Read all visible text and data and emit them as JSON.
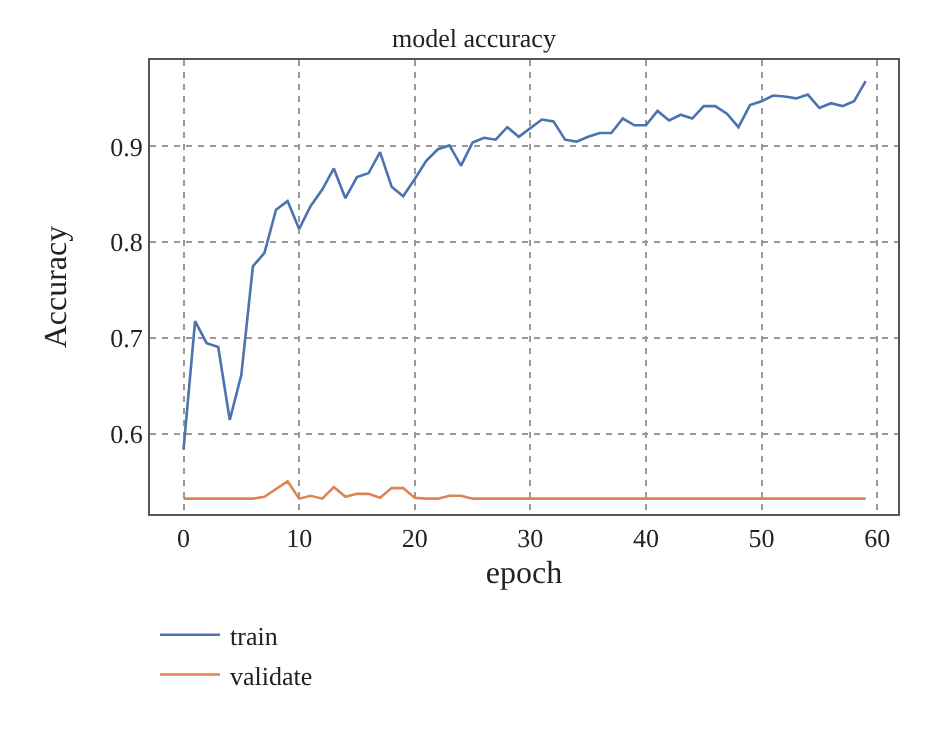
{
  "chart_data": {
    "type": "line",
    "title": "model accuracy",
    "xlabel": "epoch",
    "ylabel": "Accuracy",
    "x": [
      0,
      1,
      2,
      3,
      4,
      5,
      6,
      7,
      8,
      9,
      10,
      11,
      12,
      13,
      14,
      15,
      16,
      17,
      18,
      19,
      20,
      21,
      22,
      23,
      24,
      25,
      26,
      27,
      28,
      29,
      30,
      31,
      32,
      33,
      34,
      35,
      36,
      37,
      38,
      39,
      40,
      41,
      42,
      43,
      44,
      45,
      46,
      47,
      48,
      49,
      50,
      51,
      52,
      53,
      54,
      55,
      56,
      57,
      58,
      59
    ],
    "series": [
      {
        "name": "train",
        "color": "#4c72b0",
        "values": [
          0.584,
          0.718,
          0.695,
          0.691,
          0.615,
          0.662,
          0.775,
          0.789,
          0.834,
          0.843,
          0.814,
          0.838,
          0.855,
          0.877,
          0.846,
          0.868,
          0.872,
          0.894,
          0.858,
          0.848,
          0.866,
          0.885,
          0.897,
          0.901,
          0.88,
          0.904,
          0.909,
          0.907,
          0.92,
          0.91,
          0.919,
          0.928,
          0.926,
          0.907,
          0.905,
          0.91,
          0.914,
          0.914,
          0.929,
          0.922,
          0.922,
          0.937,
          0.927,
          0.933,
          0.929,
          0.942,
          0.942,
          0.934,
          0.92,
          0.943,
          0.947,
          0.953,
          0.952,
          0.95,
          0.954,
          0.94,
          0.945,
          0.942,
          0.947,
          0.968
        ]
      },
      {
        "name": "validate",
        "color": "#dd8452",
        "values": [
          0.533,
          0.533,
          0.533,
          0.533,
          0.533,
          0.533,
          0.533,
          0.535,
          0.543,
          0.551,
          0.533,
          0.536,
          0.533,
          0.545,
          0.535,
          0.538,
          0.538,
          0.534,
          0.544,
          0.544,
          0.534,
          0.533,
          0.533,
          0.536,
          0.536,
          0.533,
          0.533,
          0.533,
          0.533,
          0.533,
          0.533,
          0.533,
          0.533,
          0.533,
          0.533,
          0.533,
          0.533,
          0.533,
          0.533,
          0.533,
          0.533,
          0.533,
          0.533,
          0.533,
          0.533,
          0.533,
          0.533,
          0.533,
          0.533,
          0.533,
          0.533,
          0.533,
          0.533,
          0.533,
          0.533,
          0.533,
          0.533,
          0.533,
          0.533,
          0.533
        ]
      }
    ],
    "xlim": [
      -2.9,
      61.8
    ],
    "xticks": [
      0,
      10,
      20,
      30,
      40,
      50,
      60
    ],
    "ylim": [
      0.517,
      0.99
    ],
    "yticks": [
      0.6,
      0.7,
      0.8,
      0.9
    ],
    "grid": true,
    "legend": "bottom left",
    "marker": "none",
    "line_style": "solid"
  }
}
